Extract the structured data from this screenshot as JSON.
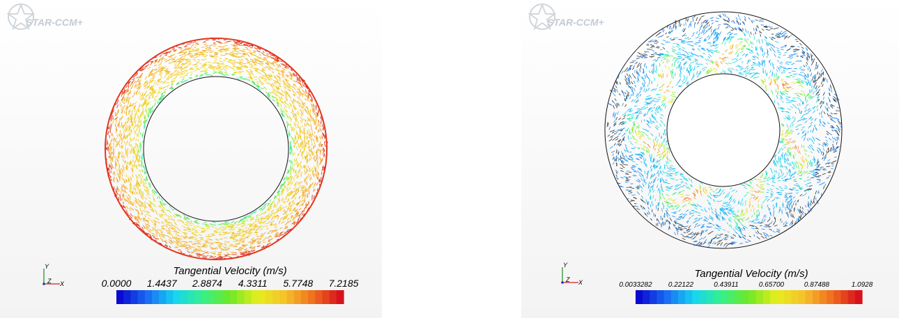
{
  "chart_data": [
    {
      "type": "vector-field",
      "logo": "STAR-CCM+",
      "legend_title": "Tangential Velocity (m/s)",
      "scale_min": 0.0,
      "scale_max": 7.2185,
      "tick_labels": [
        "0.0000",
        "1.4437",
        "2.8874",
        "4.3311",
        "5.7748",
        "7.2185"
      ],
      "colormap": "blue-red",
      "triad": {
        "x": "X",
        "y": "Y",
        "z": "Z"
      }
    },
    {
      "type": "vector-field",
      "logo": "STAR-CCM+",
      "legend_title": "Tangential Velocity (m/s)",
      "scale_min": 0.0033282,
      "scale_max": 1.0928,
      "tick_labels": [
        "0.0033282",
        "0.22122",
        "0.43911",
        "0.65700",
        "0.87488",
        "1.0928"
      ],
      "colormap": "blue-red",
      "triad": {
        "x": "X",
        "y": "Y",
        "z": "Z"
      }
    }
  ],
  "colors": {
    "background_top": "#ffffff",
    "background_bottom": "#f4f4f4",
    "colormap_stops": [
      "#0a0ad2",
      "#1a6cf2",
      "#15d6f2",
      "#35f08a",
      "#6ee825",
      "#e6ee1e",
      "#f5c22a",
      "#f0701e",
      "#d8121c"
    ]
  }
}
